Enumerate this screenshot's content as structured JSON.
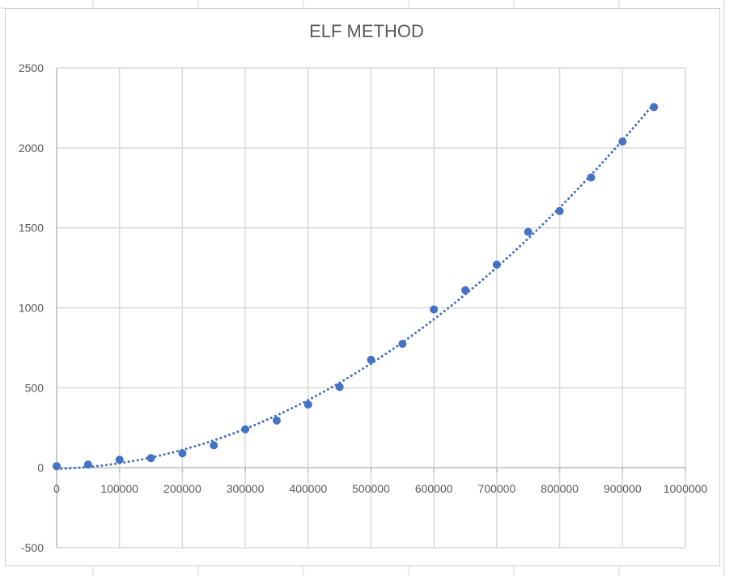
{
  "chart_data": {
    "type": "scatter",
    "title": "ELF METHOD",
    "xlabel": "",
    "ylabel": "",
    "xlim": [
      0,
      1000000
    ],
    "ylim": [
      -500,
      2500
    ],
    "x_ticks": [
      "0",
      "100000",
      "200000",
      "300000",
      "400000",
      "500000",
      "600000",
      "700000",
      "800000",
      "900000",
      "1000000"
    ],
    "y_ticks": [
      "2500",
      "2000",
      "1500",
      "1000",
      "500",
      "0",
      "-500"
    ],
    "grid": true,
    "legend": "none",
    "series": [
      {
        "points": [
          [
            0,
            10
          ],
          [
            50000,
            20
          ],
          [
            100000,
            50
          ],
          [
            150000,
            60
          ],
          [
            200000,
            90
          ],
          [
            250000,
            140
          ],
          [
            300000,
            240
          ],
          [
            350000,
            295
          ],
          [
            400000,
            395
          ],
          [
            450000,
            505
          ],
          [
            500000,
            675
          ],
          [
            550000,
            775
          ],
          [
            600000,
            990
          ],
          [
            650000,
            1110
          ],
          [
            700000,
            1270
          ],
          [
            750000,
            1475
          ],
          [
            800000,
            1605
          ],
          [
            850000,
            1815
          ],
          [
            900000,
            2040
          ],
          [
            950000,
            2255
          ]
        ],
        "trendline": "polynomial (order 2), dotted",
        "trendline_range": [
          0,
          950000
        ]
      }
    ],
    "colors": {
      "marker": "#4472C4",
      "trendline": "#4472C4",
      "gridline": "#d9d9d9",
      "axis": "#bfbfbf",
      "text": "#595959"
    }
  }
}
